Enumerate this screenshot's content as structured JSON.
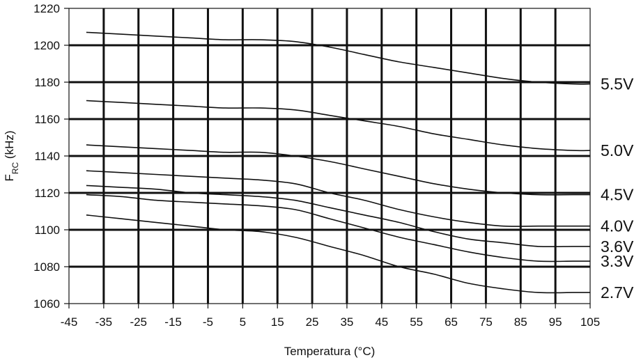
{
  "chart_data": {
    "type": "line",
    "xlabel": "Temperatura (°C)",
    "ylabel_main": "F",
    "ylabel_sub": "RC",
    "ylabel_suffix": " (kHz)",
    "xlim": [
      -45,
      105
    ],
    "ylim": [
      1060,
      1220
    ],
    "x_ticks": [
      -45,
      -35,
      -25,
      -15,
      -5,
      5,
      15,
      25,
      35,
      45,
      55,
      65,
      75,
      85,
      95,
      105
    ],
    "y_ticks": [
      1060,
      1080,
      1100,
      1120,
      1140,
      1160,
      1180,
      1200,
      1220
    ],
    "grid": true,
    "x": [
      -40,
      -30,
      -20,
      -10,
      0,
      10,
      20,
      30,
      40,
      50,
      60,
      70,
      80,
      90,
      100,
      105
    ],
    "series": [
      {
        "name": "5.5V",
        "values": [
          1207,
          1206,
          1205,
          1204,
          1203,
          1203,
          1202,
          1199,
          1195,
          1191,
          1188,
          1185,
          1182,
          1180,
          1179,
          1179
        ]
      },
      {
        "name": "5.0V",
        "values": [
          1170,
          1169,
          1168,
          1167,
          1166,
          1166,
          1165,
          1162,
          1159,
          1156,
          1152,
          1149,
          1146,
          1144,
          1143,
          1143
        ]
      },
      {
        "name": "4.5V",
        "values": [
          1146,
          1145,
          1144,
          1143,
          1142,
          1142,
          1140,
          1137,
          1133,
          1129,
          1125,
          1122,
          1120,
          1119,
          1119,
          1119
        ]
      },
      {
        "name": "4.0V",
        "values": [
          1132,
          1131,
          1130,
          1129,
          1128,
          1127,
          1125,
          1120,
          1116,
          1111,
          1107,
          1104,
          1102,
          1102,
          1102,
          1102
        ]
      },
      {
        "name": "3.6V",
        "values": [
          1124,
          1123,
          1122,
          1120,
          1119,
          1118,
          1116,
          1112,
          1108,
          1104,
          1099,
          1095,
          1093,
          1091,
          1091,
          1091
        ]
      },
      {
        "name": "3.3V",
        "values": [
          1119,
          1118,
          1116,
          1115,
          1114,
          1113,
          1111,
          1106,
          1101,
          1096,
          1092,
          1088,
          1085,
          1083,
          1083,
          1083
        ]
      },
      {
        "name": "2.7V",
        "values": [
          1108,
          1106,
          1104,
          1102,
          1100,
          1099,
          1096,
          1091,
          1086,
          1080,
          1076,
          1071,
          1068,
          1066,
          1066,
          1066
        ]
      }
    ]
  }
}
